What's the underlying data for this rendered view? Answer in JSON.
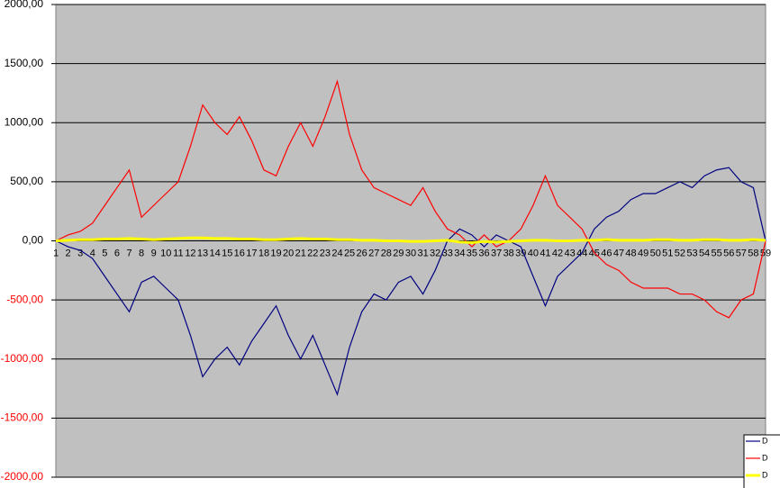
{
  "chart_data": {
    "type": "line",
    "categories": [
      1,
      2,
      3,
      4,
      5,
      6,
      7,
      8,
      9,
      10,
      11,
      12,
      13,
      14,
      15,
      16,
      17,
      18,
      19,
      20,
      21,
      22,
      23,
      24,
      25,
      26,
      27,
      28,
      29,
      30,
      31,
      32,
      33,
      34,
      35,
      36,
      37,
      38,
      39,
      40,
      41,
      42,
      43,
      44,
      45,
      46,
      47,
      48,
      49,
      50,
      51,
      52,
      53,
      54,
      55,
      56,
      57,
      58,
      59
    ],
    "series": [
      {
        "name": "D",
        "color": "#000080",
        "values": [
          0,
          -50,
          -80,
          -150,
          -300,
          -450,
          -600,
          -350,
          -300,
          -400,
          -500,
          -800,
          -1150,
          -1000,
          -900,
          -1050,
          -850,
          -700,
          -550,
          -800,
          -1000,
          -800,
          -1050,
          -1300,
          -900,
          -600,
          -450,
          -500,
          -350,
          -300,
          -450,
          -250,
          0,
          100,
          50,
          -50,
          50,
          0,
          -50,
          -300,
          -550,
          -300,
          -200,
          -100,
          100,
          200,
          250,
          350,
          400,
          400,
          450,
          500,
          450,
          550,
          600,
          620,
          500,
          450,
          0
        ]
      },
      {
        "name": "D",
        "color": "#ff0000",
        "values": [
          0,
          50,
          80,
          150,
          300,
          450,
          600,
          200,
          300,
          400,
          500,
          800,
          1150,
          1000,
          900,
          1050,
          850,
          600,
          550,
          800,
          1000,
          800,
          1050,
          1350,
          900,
          600,
          450,
          400,
          350,
          300,
          450,
          250,
          100,
          50,
          -50,
          50,
          -50,
          0,
          100,
          300,
          550,
          300,
          200,
          100,
          -100,
          -200,
          -250,
          -350,
          -400,
          -400,
          -400,
          -450,
          -450,
          -500,
          -600,
          -650,
          -500,
          -450,
          0
        ]
      },
      {
        "name": "D",
        "color": "#ffff00",
        "values": [
          0,
          5,
          10,
          10,
          15,
          15,
          20,
          15,
          10,
          15,
          20,
          25,
          25,
          20,
          20,
          15,
          15,
          10,
          10,
          15,
          20,
          15,
          15,
          10,
          10,
          5,
          5,
          0,
          0,
          -5,
          -5,
          0,
          5,
          -10,
          -15,
          -5,
          -10,
          -5,
          0,
          5,
          5,
          0,
          0,
          5,
          5,
          10,
          5,
          5,
          5,
          10,
          10,
          5,
          5,
          10,
          10,
          5,
          5,
          10,
          5
        ]
      }
    ],
    "ylim": [
      -2000,
      2000
    ],
    "yticks": [
      {
        "value": -2000,
        "label": "-2000,00"
      },
      {
        "value": -1500,
        "label": "-1500,00"
      },
      {
        "value": -1000,
        "label": "-1000,00"
      },
      {
        "value": -500,
        "label": "-500,00"
      },
      {
        "value": 0,
        "label": "0,00"
      },
      {
        "value": 500,
        "label": "500,00"
      },
      {
        "value": 1000,
        "label": "1000,00"
      },
      {
        "value": 1500,
        "label": "1500,00"
      },
      {
        "value": 2000,
        "label": "2000,00"
      }
    ],
    "grid": true
  }
}
